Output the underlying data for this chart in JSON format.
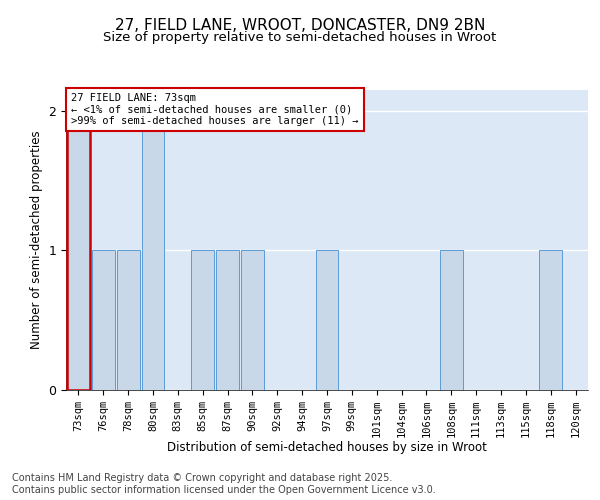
{
  "title_line1": "27, FIELD LANE, WROOT, DONCASTER, DN9 2BN",
  "title_line2": "Size of property relative to semi-detached houses in Wroot",
  "xlabel": "Distribution of semi-detached houses by size in Wroot",
  "ylabel": "Number of semi-detached properties",
  "categories": [
    "73sqm",
    "76sqm",
    "78sqm",
    "80sqm",
    "83sqm",
    "85sqm",
    "87sqm",
    "90sqm",
    "92sqm",
    "94sqm",
    "97sqm",
    "99sqm",
    "101sqm",
    "104sqm",
    "106sqm",
    "108sqm",
    "111sqm",
    "113sqm",
    "115sqm",
    "118sqm",
    "120sqm"
  ],
  "values": [
    2,
    1,
    1,
    2,
    0,
    1,
    1,
    1,
    0,
    0,
    1,
    0,
    0,
    0,
    0,
    1,
    0,
    0,
    0,
    1,
    0
  ],
  "highlight_index": 0,
  "bar_color": "#c8d8e8",
  "bar_edge_color": "#5b9bd5",
  "highlight_bar_edge_color": "#cc0000",
  "background_color": "#dce8f5",
  "annotation_text": "27 FIELD LANE: 73sqm\n← <1% of semi-detached houses are smaller (0)\n>99% of semi-detached houses are larger (11) →",
  "annotation_box_color": "white",
  "annotation_box_edge_color": "#cc0000",
  "ylim": [
    0,
    2.15
  ],
  "yticks": [
    0,
    1,
    2
  ],
  "footer_text": "Contains HM Land Registry data © Crown copyright and database right 2025.\nContains public sector information licensed under the Open Government Licence v3.0.",
  "title_fontsize": 11,
  "subtitle_fontsize": 9.5,
  "axis_label_fontsize": 8.5,
  "tick_fontsize": 7.5,
  "footer_fontsize": 7,
  "annotation_fontsize": 7.5
}
